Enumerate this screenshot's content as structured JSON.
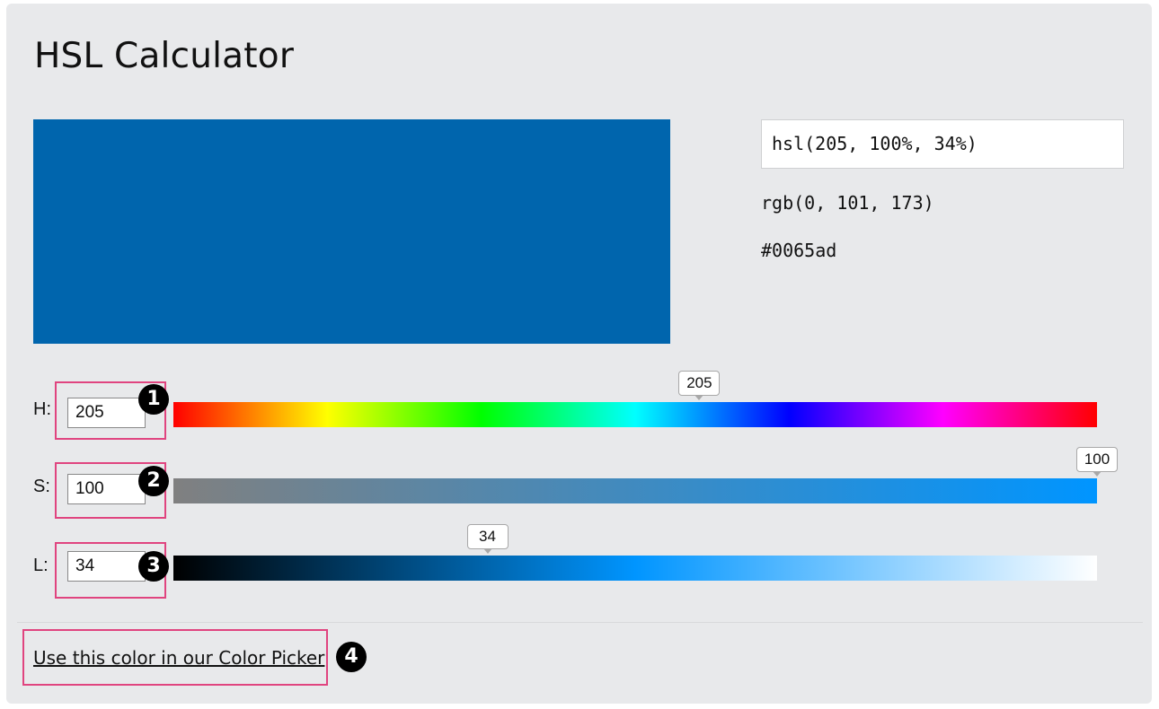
{
  "title": "HSL Calculator",
  "color": {
    "swatch_hex": "#0065ad",
    "hsl_text": "hsl(205, 100%, 34%)",
    "rgb_text": "rgb(0, 101, 173)",
    "hex_text": "#0065ad"
  },
  "sliders": {
    "hue": {
      "label": "H:",
      "value": "205",
      "thumb_label": "205",
      "badge": "1",
      "min": 0,
      "max": 360
    },
    "saturation": {
      "label": "S:",
      "value": "100",
      "thumb_label": "100",
      "badge": "2",
      "min": 0,
      "max": 100
    },
    "lightness": {
      "label": "L:",
      "value": "34",
      "thumb_label": "34",
      "badge": "3",
      "min": 0,
      "max": 100
    }
  },
  "footer": {
    "link_text": "Use this color in our Color Picker",
    "badge": "4"
  },
  "colors": {
    "highlight": "#e0447f",
    "panel_bg": "#e8e9eb"
  }
}
